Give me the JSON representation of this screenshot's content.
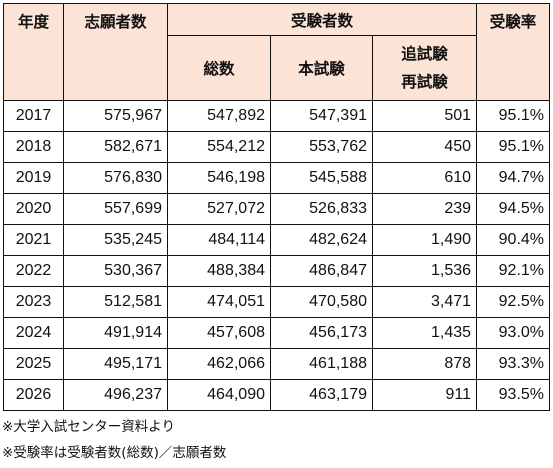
{
  "headers": {
    "year": "年度",
    "applicants": "志願者数",
    "examinees": "受験者数",
    "total": "総数",
    "main_exam": "本試験",
    "makeup_line1": "追試験",
    "makeup_line2": "再試験",
    "rate": "受験率"
  },
  "rows": [
    {
      "year": "2017",
      "applicants": "575,967",
      "total": "547,892",
      "main": "547,391",
      "makeup": "501",
      "rate": "95.1%"
    },
    {
      "year": "2018",
      "applicants": "582,671",
      "total": "554,212",
      "main": "553,762",
      "makeup": "450",
      "rate": "95.1%"
    },
    {
      "year": "2019",
      "applicants": "576,830",
      "total": "546,198",
      "main": "545,588",
      "makeup": "610",
      "rate": "94.7%"
    },
    {
      "year": "2020",
      "applicants": "557,699",
      "total": "527,072",
      "main": "526,833",
      "makeup": "239",
      "rate": "94.5%"
    },
    {
      "year": "2021",
      "applicants": "535,245",
      "total": "484,114",
      "main": "482,624",
      "makeup": "1,490",
      "rate": "90.4%"
    },
    {
      "year": "2022",
      "applicants": "530,367",
      "total": "488,384",
      "main": "486,847",
      "makeup": "1,536",
      "rate": "92.1%"
    },
    {
      "year": "2023",
      "applicants": "512,581",
      "total": "474,051",
      "main": "470,580",
      "makeup": "3,471",
      "rate": "92.5%"
    },
    {
      "year": "2024",
      "applicants": "491,914",
      "total": "457,608",
      "main": "456,173",
      "makeup": "1,435",
      "rate": "93.0%"
    },
    {
      "year": "2025",
      "applicants": "495,171",
      "total": "462,066",
      "main": "461,188",
      "makeup": "878",
      "rate": "93.3%"
    },
    {
      "year": "2026",
      "applicants": "496,237",
      "total": "464,090",
      "main": "463,179",
      "makeup": "911",
      "rate": "93.5%"
    }
  ],
  "notes": [
    "※大学入試センター資料より",
    "※受験率は受験者数(総数)／志願者数"
  ],
  "colors": {
    "header_bg": "#fbe3d5",
    "border": "#111111"
  }
}
